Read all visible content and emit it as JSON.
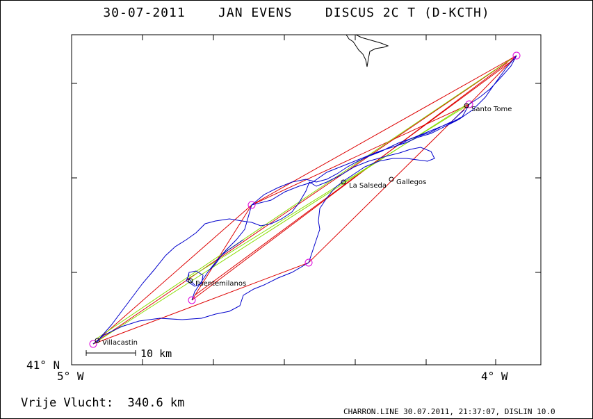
{
  "title": "30-07-2011    JAN EVENS    DISCUS 2C T (D-KCTH)",
  "axes": {
    "lat_label": "41° N",
    "lon_left_label": "5° W",
    "lon_right_label": "4° W"
  },
  "scale_bar": {
    "label": "10 km"
  },
  "places": {
    "villacastin": "Villacastin",
    "fuentemilanos": "Fuentemilanos",
    "la_salseda": "La Salseda",
    "gallegos": "Gallegos",
    "santo_tome": "Santo Tome"
  },
  "footer": {
    "distance": "Vrije Vlucht:  340.6 km",
    "info": "CHARRON.LINE 30.07.2011, 21:37:07, DISLIN 10.0"
  },
  "colors": {
    "track": "#0000cc",
    "task_lines": "#dd0000",
    "optimized_lines": "#88dd00",
    "turnpoints": "#dd00dd",
    "frame": "#000000"
  }
}
